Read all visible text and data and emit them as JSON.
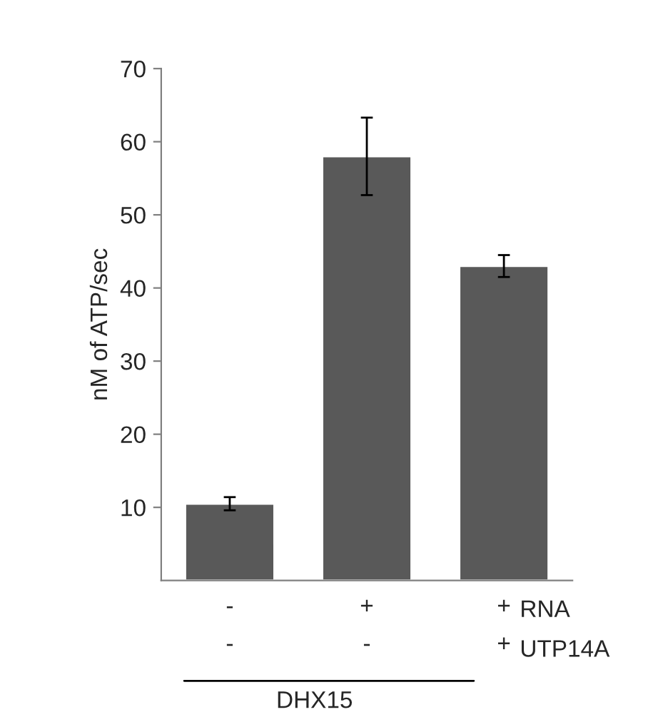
{
  "chart_data": {
    "type": "bar",
    "ylabel": "nM of ATP/sec",
    "categories": [
      "-\n-",
      "+\n-",
      "+\n+"
    ],
    "values": [
      10.5,
      58,
      43
    ],
    "errors": [
      0.9,
      5.3,
      1.5
    ],
    "color": "#595959",
    "ylim": [
      0,
      70
    ],
    "yticks": [
      10,
      20,
      30,
      40,
      50,
      60,
      70
    ],
    "grid": false,
    "annotations": [
      "RNA",
      "UTP14A",
      "DHX15"
    ]
  }
}
